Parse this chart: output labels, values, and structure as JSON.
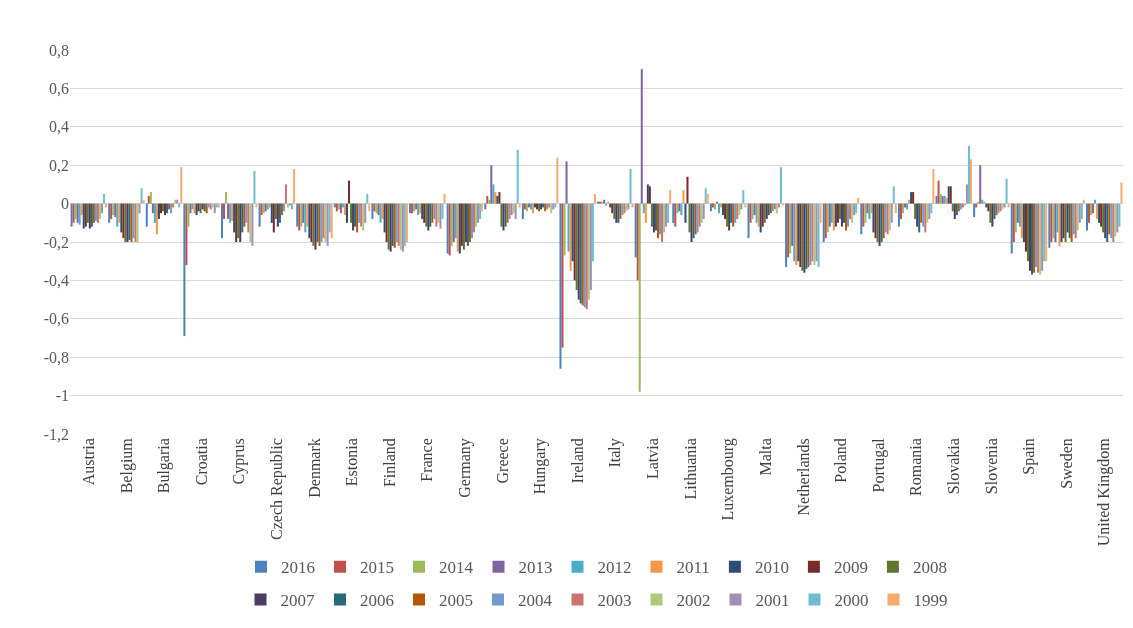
{
  "chart_data": {
    "type": "bar",
    "categories": [
      "Austria",
      "Belgium",
      "Bulgaria",
      "Croatia",
      "Cyprus",
      "Czech Republic",
      "Denmark",
      "Estonia",
      "Finland",
      "France",
      "Germany",
      "Greece",
      "Hungary",
      "Ireland",
      "Italy",
      "Latvia",
      "Lithuania",
      "Luxembourg",
      "Malta",
      "Netherlands",
      "Poland",
      "Portugal",
      "Romania",
      "Slovakia",
      "Slovenia",
      "Spain",
      "Sweden",
      "United Kingdom"
    ],
    "ylim": [
      -1.2,
      0.8
    ],
    "yticks": [
      {
        "value": -1.2,
        "label": "-1,2"
      },
      {
        "value": -1,
        "label": "-1"
      },
      {
        "value": -0.8,
        "label": "-0,8"
      },
      {
        "value": -0.6,
        "label": "-0,6"
      },
      {
        "value": -0.4,
        "label": "-0,4"
      },
      {
        "value": -0.2,
        "label": "-0,2"
      },
      0,
      {
        "value": 0.2,
        "label": "0,2"
      },
      {
        "value": 0.4,
        "label": "0,4"
      },
      {
        "value": 0.6,
        "label": "0,6"
      },
      {
        "value": 0.8,
        "label": "0,8"
      }
    ],
    "grid": "y",
    "legend": "bottom",
    "series": [
      {
        "name": "2016",
        "color": "#4f81bd",
        "values": [
          -0.12,
          -0.1,
          -0.12,
          -0.69,
          -0.18,
          -0.12,
          -0.12,
          -0.02,
          -0.08,
          -0.05,
          -0.26,
          -0.03,
          -0.08,
          -0.86,
          0.01,
          -0.28,
          -0.1,
          -0.04,
          -0.18,
          -0.33,
          -0.2,
          -0.16,
          -0.12,
          0.04,
          -0.07,
          -0.26,
          -0.23,
          -0.14
        ]
      },
      {
        "name": "2015",
        "color": "#c0504d",
        "values": [
          -0.1,
          -0.08,
          0.04,
          -0.32,
          -0.08,
          -0.06,
          -0.14,
          -0.04,
          -0.04,
          -0.05,
          -0.27,
          0.04,
          -0.03,
          -0.75,
          0.01,
          -0.4,
          -0.12,
          -0.02,
          -0.1,
          -0.28,
          -0.18,
          -0.12,
          -0.08,
          0.12,
          -0.02,
          -0.2,
          -0.2,
          -0.1
        ]
      },
      {
        "name": "2014",
        "color": "#9bbb59",
        "values": [
          -0.08,
          -0.06,
          0.06,
          -0.12,
          0.06,
          -0.05,
          -0.12,
          -0.03,
          -0.05,
          -0.04,
          -0.22,
          0.02,
          -0.04,
          -0.27,
          0.01,
          -0.98,
          -0.05,
          -0.03,
          -0.08,
          -0.26,
          -0.15,
          -0.1,
          -0.05,
          0.05,
          0.01,
          -0.15,
          -0.18,
          -0.06
        ]
      },
      {
        "name": "2013",
        "color": "#8064a2",
        "values": [
          -0.1,
          -0.07,
          -0.05,
          -0.05,
          -0.08,
          -0.04,
          -0.1,
          -0.05,
          -0.06,
          -0.03,
          -0.2,
          0.2,
          -0.02,
          0.22,
          0.02,
          0.7,
          -0.04,
          0.01,
          -0.06,
          -0.22,
          -0.12,
          -0.05,
          -0.02,
          0.04,
          0.2,
          -0.1,
          -0.2,
          -0.05
        ]
      },
      {
        "name": "2012",
        "color": "#4bacc6",
        "values": [
          -0.11,
          -0.12,
          -0.1,
          -0.03,
          -0.1,
          -0.03,
          -0.15,
          -0.02,
          -0.1,
          -0.06,
          -0.18,
          0.1,
          -0.03,
          -0.25,
          -0.01,
          -0.05,
          -0.06,
          -0.05,
          -0.1,
          -0.3,
          -0.1,
          -0.08,
          -0.03,
          0.04,
          0.02,
          -0.12,
          -0.15,
          0.02
        ]
      },
      {
        "name": "2011",
        "color": "#f79646",
        "values": [
          -0.06,
          -0.1,
          -0.16,
          -0.05,
          -0.09,
          -0.02,
          -0.12,
          -0.06,
          -0.08,
          -0.05,
          -0.25,
          0.06,
          -0.05,
          -0.35,
          0.01,
          -0.1,
          0.07,
          -0.02,
          -0.12,
          -0.32,
          -0.14,
          -0.05,
          0.02,
          0.03,
          0.01,
          -0.18,
          -0.22,
          -0.08
        ]
      },
      {
        "name": "2010",
        "color": "#2c4d75",
        "values": [
          -0.13,
          -0.15,
          -0.08,
          -0.06,
          -0.15,
          -0.1,
          -0.18,
          -0.1,
          -0.15,
          -0.08,
          -0.26,
          0.04,
          -0.02,
          -0.3,
          -0.02,
          0.1,
          -0.1,
          -0.06,
          -0.15,
          -0.3,
          -0.12,
          -0.15,
          0.06,
          0.09,
          -0.02,
          -0.2,
          -0.2,
          -0.1
        ]
      },
      {
        "name": "2009",
        "color": "#772c2a",
        "values": [
          -0.12,
          -0.18,
          -0.05,
          -0.04,
          -0.2,
          -0.15,
          -0.2,
          0.12,
          -0.2,
          -0.1,
          -0.22,
          0.06,
          -0.03,
          -0.4,
          -0.05,
          0.09,
          0.14,
          -0.08,
          -0.12,
          -0.33,
          -0.1,
          -0.18,
          0.06,
          0.09,
          -0.04,
          -0.25,
          -0.18,
          -0.12
        ]
      },
      {
        "name": "2008",
        "color": "#5f7530",
        "values": [
          -0.1,
          -0.2,
          -0.04,
          -0.05,
          -0.18,
          -0.08,
          -0.22,
          -0.1,
          -0.24,
          -0.12,
          -0.24,
          -0.12,
          -0.04,
          -0.45,
          -0.08,
          -0.12,
          -0.15,
          -0.12,
          -0.1,
          -0.35,
          -0.08,
          -0.2,
          -0.08,
          -0.04,
          -0.1,
          -0.3,
          -0.2,
          -0.15
        ]
      },
      {
        "name": "2007",
        "color": "#4d3b62",
        "values": [
          -0.13,
          -0.2,
          -0.06,
          -0.03,
          -0.2,
          -0.12,
          -0.24,
          -0.14,
          -0.25,
          -0.14,
          -0.2,
          -0.14,
          -0.03,
          -0.5,
          -0.1,
          -0.15,
          -0.2,
          -0.14,
          -0.08,
          -0.36,
          -0.12,
          -0.22,
          -0.12,
          -0.08,
          -0.12,
          -0.35,
          -0.15,
          -0.18
        ]
      },
      {
        "name": "2006",
        "color": "#276a7c",
        "values": [
          -0.12,
          -0.19,
          -0.05,
          -0.04,
          -0.15,
          -0.1,
          -0.2,
          -0.12,
          -0.22,
          -0.12,
          -0.22,
          -0.12,
          -0.02,
          -0.52,
          -0.1,
          -0.14,
          -0.18,
          -0.1,
          -0.06,
          -0.34,
          -0.1,
          -0.2,
          -0.15,
          -0.06,
          -0.08,
          -0.37,
          -0.18,
          -0.2
        ]
      },
      {
        "name": "2005",
        "color": "#b65708",
        "values": [
          -0.1,
          -0.2,
          -0.03,
          -0.05,
          -0.12,
          -0.06,
          -0.22,
          -0.15,
          -0.23,
          -0.1,
          -0.2,
          -0.1,
          -0.04,
          -0.53,
          -0.08,
          -0.18,
          -0.16,
          -0.12,
          -0.05,
          -0.33,
          -0.14,
          -0.18,
          -0.1,
          -0.04,
          -0.06,
          -0.36,
          -0.2,
          -0.16
        ]
      },
      {
        "name": "2004",
        "color": "#729aca",
        "values": [
          -0.09,
          -0.18,
          -0.05,
          -0.02,
          -0.1,
          -0.04,
          -0.2,
          -0.1,
          -0.2,
          -0.08,
          -0.18,
          -0.08,
          -0.03,
          -0.54,
          -0.06,
          -0.16,
          -0.15,
          -0.1,
          -0.04,
          -0.32,
          -0.12,
          -0.15,
          -0.12,
          -0.03,
          -0.05,
          -0.33,
          -0.16,
          -0.18
        ]
      },
      {
        "name": "2003",
        "color": "#cd7371",
        "values": [
          -0.1,
          -0.2,
          -0.02,
          -0.03,
          -0.15,
          0.1,
          -0.18,
          -0.12,
          -0.22,
          -0.12,
          -0.15,
          -0.06,
          -0.02,
          -0.55,
          -0.05,
          -0.2,
          -0.12,
          -0.08,
          -0.03,
          -0.3,
          -0.08,
          -0.16,
          -0.15,
          -0.02,
          -0.04,
          -0.36,
          -0.18,
          -0.2
        ]
      },
      {
        "name": "2002",
        "color": "#afc97a",
        "values": [
          -0.08,
          -0.2,
          0.02,
          -0.02,
          -0.2,
          -0.02,
          -0.2,
          -0.14,
          -0.24,
          -0.1,
          -0.12,
          -0.05,
          -0.05,
          -0.5,
          -0.04,
          -0.15,
          -0.1,
          -0.06,
          -0.05,
          -0.32,
          -0.1,
          -0.14,
          -0.1,
          -0.01,
          -0.03,
          -0.37,
          -0.14,
          -0.17
        ]
      },
      {
        "name": "2001",
        "color": "#a18fb6",
        "values": [
          -0.05,
          -0.05,
          0.02,
          -0.05,
          -0.22,
          -0.01,
          -0.22,
          -0.1,
          -0.25,
          -0.13,
          -0.1,
          -0.08,
          -0.03,
          -0.45,
          -0.03,
          -0.12,
          -0.08,
          -0.03,
          -0.02,
          -0.3,
          -0.06,
          -0.1,
          -0.08,
          0.1,
          -0.02,
          -0.35,
          -0.1,
          -0.15
        ]
      },
      {
        "name": "2000",
        "color": "#6fbdd1",
        "values": [
          0.05,
          0.08,
          -0.02,
          -0.02,
          0.17,
          -0.03,
          -0.15,
          0.05,
          -0.22,
          -0.08,
          -0.08,
          0.28,
          -0.02,
          -0.3,
          0.18,
          -0.1,
          0.08,
          0.07,
          0.19,
          -0.33,
          -0.05,
          0.09,
          -0.05,
          0.3,
          0.13,
          -0.3,
          -0.08,
          -0.12
        ]
      },
      {
        "name": "1999",
        "color": "#f9ab6b",
        "values": [
          -0.02,
          0.02,
          0.19,
          -0.02,
          -0.02,
          0.18,
          -0.18,
          -0.04,
          -0.2,
          0.05,
          -0.04,
          -0.02,
          0.24,
          0.05,
          -0.02,
          0.07,
          0.05,
          -0.02,
          -0.01,
          -0.1,
          0.03,
          -0.05,
          0.18,
          0.23,
          -0.02,
          -0.3,
          0.02,
          0.11
        ]
      }
    ]
  }
}
